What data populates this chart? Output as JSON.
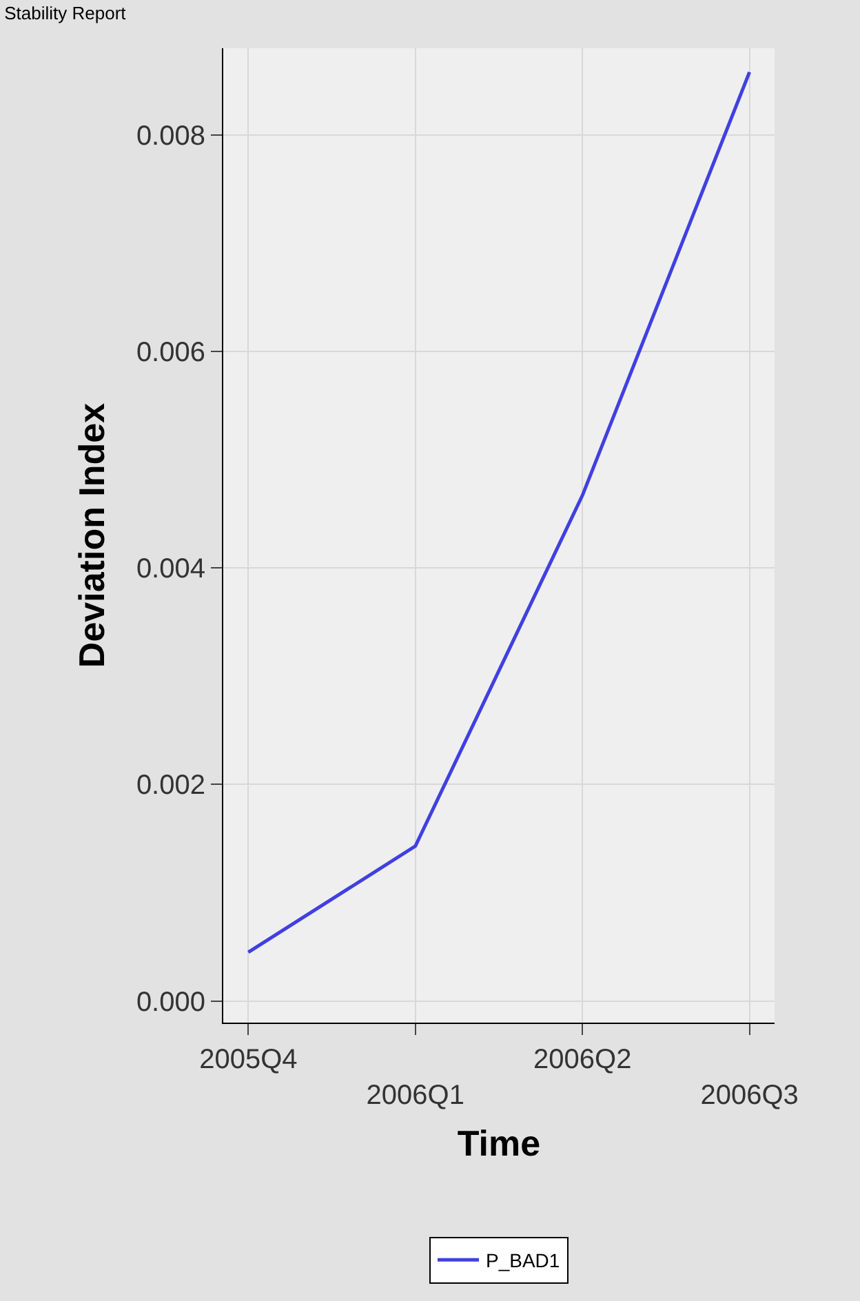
{
  "chart_data": {
    "type": "line",
    "title": "Stability Report",
    "xlabel": "Time",
    "ylabel": "Deviation Index",
    "categories": [
      "2005Q4",
      "2006Q1",
      "2006Q2",
      "2006Q3"
    ],
    "series": [
      {
        "name": "P_BAD1",
        "color": "#4040e0",
        "values": [
          0.00045,
          0.00143,
          0.00467,
          0.00858
        ]
      }
    ],
    "ylim": [
      -0.0002,
      0.0088
    ],
    "yticks": [
      {
        "value": 0,
        "label": "0.000"
      },
      {
        "value": 0.002,
        "label": "0.002"
      },
      {
        "value": 0.004,
        "label": "0.004"
      },
      {
        "value": 0.006,
        "label": "0.006"
      },
      {
        "value": 0.008,
        "label": "0.008"
      }
    ],
    "grid": true,
    "legend": "bottom",
    "marker": "none",
    "line_style": "solid"
  }
}
